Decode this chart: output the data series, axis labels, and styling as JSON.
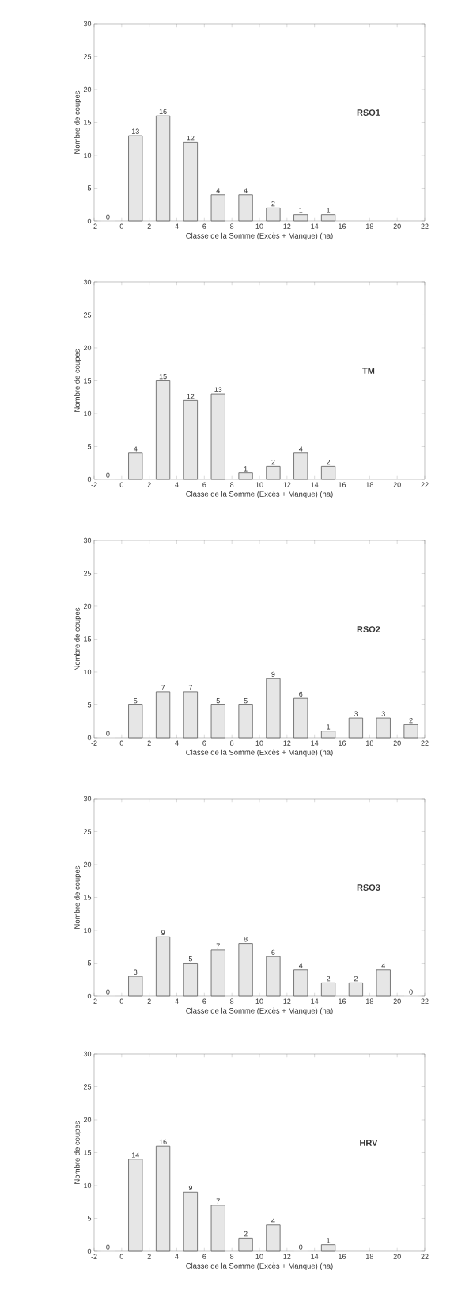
{
  "chart_data": [
    {
      "type": "bar",
      "title": "RSO1",
      "xlabel": "Classe de la Somme (Excès + Manque) (ha)",
      "ylabel": "Nombre de coupes",
      "x": [
        -1,
        1,
        3,
        5,
        7,
        9,
        11,
        13,
        15
      ],
      "values": [
        0,
        13,
        16,
        12,
        4,
        4,
        2,
        1,
        1
      ],
      "color": "#e6e6e6",
      "data_labels": true,
      "xlim": [
        -2,
        22
      ],
      "ylim": [
        0,
        30
      ],
      "xticks": [
        -2,
        0,
        2,
        4,
        6,
        8,
        10,
        12,
        14,
        16,
        18,
        20,
        22
      ],
      "yticks": [
        0,
        5,
        10,
        15,
        20,
        25,
        30
      ]
    },
    {
      "type": "bar",
      "title": "TM",
      "xlabel": "Classe de la Somme (Excès + Manque) (ha)",
      "ylabel": "Nombre de coupes",
      "x": [
        -1,
        1,
        3,
        5,
        7,
        9,
        11,
        13,
        15
      ],
      "values": [
        0,
        4,
        15,
        12,
        13,
        1,
        2,
        4,
        2
      ],
      "color": "#e6e6e6",
      "data_labels": true,
      "xlim": [
        -2,
        22
      ],
      "ylim": [
        0,
        30
      ],
      "xticks": [
        -2,
        0,
        2,
        4,
        6,
        8,
        10,
        12,
        14,
        16,
        18,
        20,
        22
      ],
      "yticks": [
        0,
        5,
        10,
        15,
        20,
        25,
        30
      ]
    },
    {
      "type": "bar",
      "title": "RSO2",
      "xlabel": "Classe de la Somme (Excès + Manque) (ha)",
      "ylabel": "Nombre de coupes",
      "x": [
        -1,
        1,
        3,
        5,
        7,
        9,
        11,
        13,
        15,
        17,
        19,
        21
      ],
      "values": [
        0,
        5,
        7,
        7,
        5,
        5,
        9,
        6,
        1,
        3,
        3,
        2
      ],
      "color": "#e6e6e6",
      "data_labels": true,
      "xlim": [
        -2,
        22
      ],
      "ylim": [
        0,
        30
      ],
      "xticks": [
        -2,
        0,
        2,
        4,
        6,
        8,
        10,
        12,
        14,
        16,
        18,
        20,
        22
      ],
      "yticks": [
        0,
        5,
        10,
        15,
        20,
        25,
        30
      ]
    },
    {
      "type": "bar",
      "title": "RSO3",
      "xlabel": "Classe de la Somme (Excès + Manque) (ha)",
      "ylabel": "Nombre de coupes",
      "x": [
        -1,
        1,
        3,
        5,
        7,
        9,
        11,
        13,
        15,
        17,
        19,
        21
      ],
      "values": [
        0,
        3,
        9,
        5,
        7,
        8,
        6,
        4,
        2,
        2,
        4,
        0
      ],
      "color": "#e6e6e6",
      "data_labels": true,
      "xlim": [
        -2,
        22
      ],
      "ylim": [
        0,
        30
      ],
      "xticks": [
        -2,
        0,
        2,
        4,
        6,
        8,
        10,
        12,
        14,
        16,
        18,
        20,
        22
      ],
      "yticks": [
        0,
        5,
        10,
        15,
        20,
        25,
        30
      ]
    },
    {
      "type": "bar",
      "title": "HRV",
      "xlabel": "Classe de la Somme (Excès + Manque) (ha)",
      "ylabel": "Nombre de coupes",
      "x": [
        -1,
        1,
        3,
        5,
        7,
        9,
        11,
        13,
        15
      ],
      "values": [
        0,
        14,
        16,
        9,
        7,
        2,
        4,
        0,
        1
      ],
      "color": "#e6e6e6",
      "data_labels": true,
      "xlim": [
        -2,
        22
      ],
      "ylim": [
        0,
        30
      ],
      "xticks": [
        -2,
        0,
        2,
        4,
        6,
        8,
        10,
        12,
        14,
        16,
        18,
        20,
        22
      ],
      "yticks": [
        0,
        5,
        10,
        15,
        20,
        25,
        30
      ]
    }
  ]
}
